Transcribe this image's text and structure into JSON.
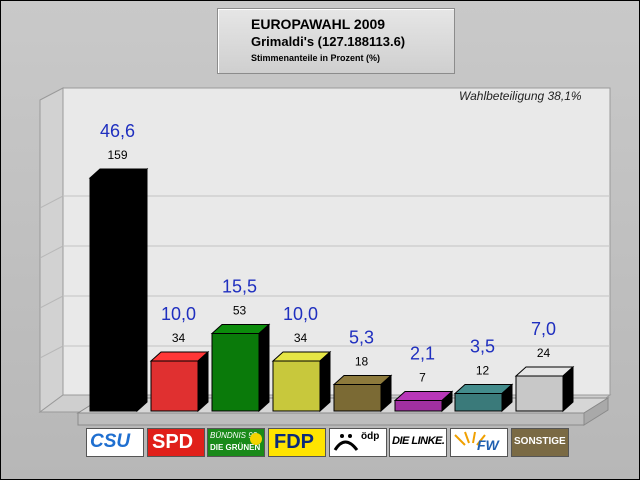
{
  "header": {
    "title": "EUROPAWAHL 2009",
    "subtitle": "Grimaldi's (127.188113.6)",
    "caption": "Stimmenanteile in Prozent (%)"
  },
  "turnout_label": "Wahlbeteiligung 38,1%",
  "chart_data": {
    "type": "bar",
    "categories": [
      "CSU",
      "SPD",
      "BÜNDNIS 90 / DIE GRÜNEN",
      "FDP",
      "ÖDP",
      "DIE LINKE.",
      "FW",
      "SONSTIGE"
    ],
    "values": [
      46.6,
      10.0,
      15.5,
      10.0,
      5.3,
      2.1,
      3.5,
      7.0
    ],
    "value_labels": [
      "46,6",
      "10,0",
      "15,5",
      "10,0",
      "5,3",
      "2,1",
      "3,5",
      "7,0"
    ],
    "votes": [
      "159",
      "34",
      "53",
      "34",
      "18",
      "7",
      "12",
      "24"
    ],
    "colors": [
      "#000000",
      "#e03030",
      "#0a7a0a",
      "#c8c83c",
      "#7b6a34",
      "#a030a0",
      "#3a7a7a",
      "#c8c8c8"
    ],
    "ylim": [
      0,
      50
    ],
    "grid": true,
    "label_color": "#1f2fbf"
  },
  "logos": {
    "csu": "CSU",
    "spd": "SPD",
    "gruene_top": "BÜNDNIS 90",
    "gruene_bottom": "DIE GRÜNEN",
    "fdp": "FDP",
    "oedp": "ödp",
    "linke": "DIE LINKE.",
    "fw": "FW",
    "sonstige": "SONSTIGE"
  }
}
